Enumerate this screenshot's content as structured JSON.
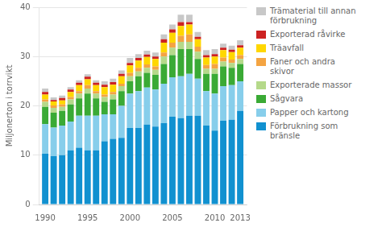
{
  "chart_data": {
    "type": "bar",
    "stacked": true,
    "ylabel": "Miljonerton i torrvikt",
    "x": [
      1990,
      1991,
      1992,
      1993,
      1994,
      1995,
      1996,
      1997,
      1998,
      1999,
      2000,
      2001,
      2002,
      2003,
      2004,
      2005,
      2006,
      2007,
      2008,
      2009,
      2010,
      2011,
      2012,
      2013
    ],
    "series": [
      {
        "name": "Förbrukning som\nbränsle",
        "color": "#1191d0",
        "values": [
          10.3,
          9.8,
          10.0,
          11.0,
          11.5,
          11.0,
          11.0,
          12.8,
          13.3,
          13.5,
          15.5,
          15.5,
          16.2,
          15.8,
          16.5,
          17.8,
          17.5,
          18.0,
          18.0,
          16.0,
          15.0,
          17.0,
          17.2,
          19.0
        ]
      },
      {
        "name": "Papper och kartong",
        "color": "#87ceeb",
        "values": [
          6.0,
          5.8,
          6.0,
          5.8,
          6.5,
          7.0,
          7.0,
          5.5,
          5.0,
          6.5,
          7.0,
          7.5,
          7.5,
          7.5,
          8.0,
          8.0,
          8.5,
          8.5,
          7.5,
          7.0,
          7.5,
          7.0,
          7.0,
          6.0
        ]
      },
      {
        "name": "Sågvara",
        "color": "#3aaa35",
        "values": [
          3.5,
          3.0,
          3.0,
          3.5,
          3.5,
          4.5,
          3.5,
          2.5,
          3.0,
          3.0,
          2.5,
          3.0,
          3.0,
          3.0,
          4.0,
          4.5,
          5.5,
          5.0,
          4.0,
          3.5,
          4.0,
          4.0,
          3.5,
          3.5
        ]
      },
      {
        "name": "Exporterade massor",
        "color": "#b5d98a",
        "values": [
          1.0,
          1.0,
          0.8,
          1.0,
          1.0,
          1.0,
          1.0,
          1.0,
          1.0,
          1.0,
          1.0,
          1.0,
          1.0,
          1.0,
          1.5,
          1.5,
          1.5,
          1.5,
          1.5,
          1.0,
          1.0,
          1.0,
          1.0,
          1.0
        ]
      },
      {
        "name": "Faner och andra\nskivor",
        "color": "#f4a442",
        "values": [
          0.5,
          0.5,
          0.5,
          0.5,
          0.5,
          0.7,
          0.5,
          0.5,
          0.5,
          0.5,
          0.7,
          0.7,
          0.7,
          0.7,
          0.8,
          1.0,
          1.2,
          1.5,
          1.0,
          0.8,
          1.0,
          0.8,
          0.7,
          0.8
        ]
      },
      {
        "name": "Träavfall",
        "color": "#ffd700",
        "values": [
          1.0,
          0.8,
          0.8,
          1.0,
          1.2,
          1.2,
          1.2,
          1.5,
          1.5,
          1.5,
          1.5,
          1.5,
          1.5,
          1.5,
          2.0,
          2.0,
          2.0,
          2.0,
          1.5,
          1.5,
          1.5,
          1.5,
          1.5,
          1.5
        ]
      },
      {
        "name": "Exporterad råvirke",
        "color": "#cc2222",
        "values": [
          0.5,
          0.3,
          0.5,
          0.5,
          0.5,
          0.5,
          0.5,
          0.5,
          0.5,
          0.5,
          0.5,
          0.5,
          0.5,
          0.5,
          0.7,
          0.7,
          0.8,
          0.5,
          0.5,
          0.5,
          0.5,
          0.5,
          0.5,
          0.5
        ]
      },
      {
        "name": "Trämaterial till annan\nförbrukning",
        "color": "#c8c8c8",
        "values": [
          0.7,
          0.5,
          0.5,
          0.5,
          0.5,
          0.5,
          0.5,
          0.7,
          0.7,
          0.7,
          1.0,
          0.8,
          0.8,
          0.8,
          1.0,
          1.0,
          1.5,
          1.5,
          1.0,
          1.0,
          1.0,
          0.8,
          0.8,
          1.0
        ]
      }
    ],
    "xlim": [
      1989.3,
      2013.8
    ],
    "xticks": [
      1990,
      1995,
      2000,
      2005,
      2010,
      2013
    ],
    "ylim": [
      0,
      40
    ],
    "yticks": [
      0,
      10,
      20,
      30,
      40
    ],
    "grid": true,
    "legend": "right"
  }
}
